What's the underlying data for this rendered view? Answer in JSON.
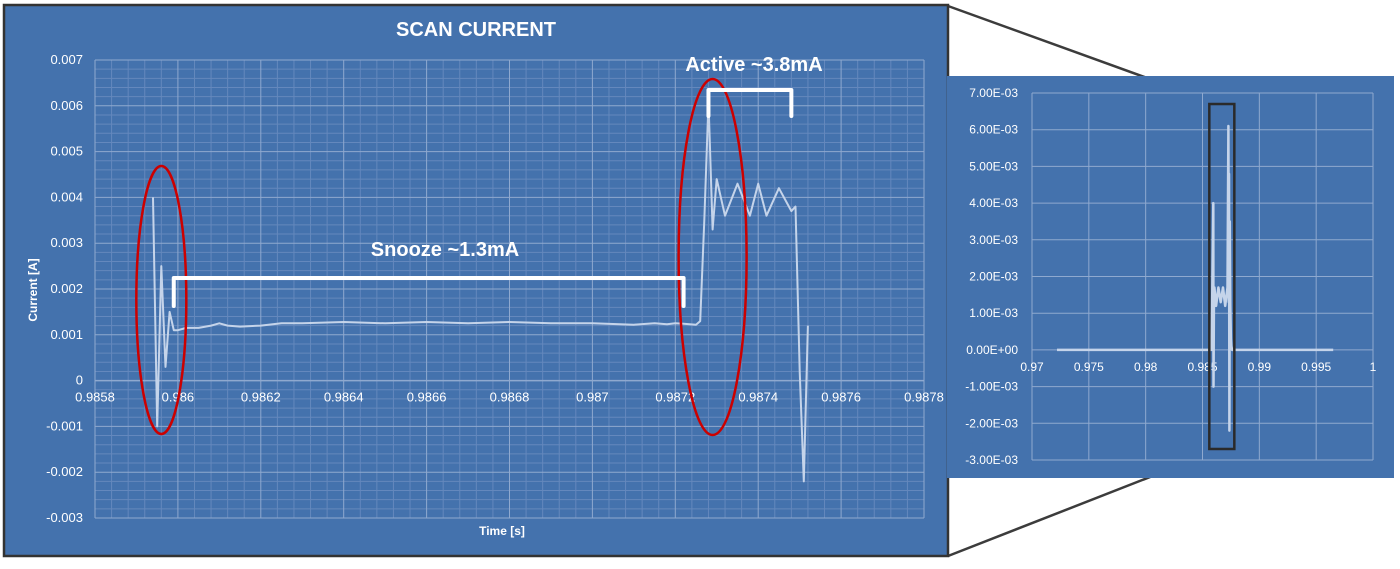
{
  "colors": {
    "panel_bg": "#4472ad",
    "frame": "#333333",
    "grid_major": "#8fa9cf",
    "grid_minor": "#6488bd",
    "axis_text": "#ffffff",
    "trace": "#c5d4ea",
    "highlight": "#cc0000",
    "bracket": "#ffffff"
  },
  "chart_data": [
    {
      "type": "line",
      "title": "SCAN CURRENT",
      "xlabel": "Time [s]",
      "ylabel": "Current [A]",
      "xlim": [
        0.9858,
        0.9878
      ],
      "ylim": [
        -0.003,
        0.007
      ],
      "xticks": [
        "0.9858",
        "0.986",
        "0.9862",
        "0.9864",
        "0.9866",
        "0.9868",
        "0.987",
        "0.9872",
        "0.9874",
        "0.9876",
        "0.9878"
      ],
      "yticks": [
        "-0.003",
        "-0.002",
        "-0.001",
        "0",
        "0.001",
        "0.002",
        "0.003",
        "0.004",
        "0.005",
        "0.006",
        "0.007"
      ],
      "grid": true,
      "series": [
        {
          "x": [
            0.98594,
            0.98595,
            0.98596,
            0.98597,
            0.98598,
            0.98599,
            0.986,
            0.98602,
            0.98605,
            0.98608,
            0.9861,
            0.98612,
            0.98615,
            0.9862,
            0.98625,
            0.9863,
            0.9864,
            0.9865,
            0.9866,
            0.9867,
            0.9868,
            0.9869,
            0.987,
            0.9871,
            0.98715,
            0.98718,
            0.9872,
            0.98722,
            0.98725,
            0.98726,
            0.98727,
            0.98728,
            0.98729,
            0.9873,
            0.98732,
            0.98735,
            0.98738,
            0.9874,
            0.98742,
            0.98745,
            0.98748,
            0.98749,
            0.9875,
            0.98751,
            0.98752
          ],
          "y": [
            0.004,
            -0.001,
            0.0025,
            0.0003,
            0.0015,
            0.0011,
            0.0011,
            0.00115,
            0.00115,
            0.0012,
            0.00125,
            0.0012,
            0.00118,
            0.0012,
            0.00125,
            0.00125,
            0.00128,
            0.00125,
            0.00128,
            0.00125,
            0.00128,
            0.00125,
            0.00125,
            0.00122,
            0.00125,
            0.00123,
            0.00125,
            0.00124,
            0.00122,
            0.0013,
            0.0035,
            0.0061,
            0.0033,
            0.0044,
            0.0036,
            0.0043,
            0.0036,
            0.0043,
            0.0036,
            0.0042,
            0.0037,
            0.0038,
            0.0002,
            -0.0022,
            0.0012
          ]
        }
      ],
      "annotations": [
        {
          "text": "Snooze ~1.3mA",
          "x_start": 0.98599,
          "x_end": 0.98722
        },
        {
          "text": "Active ~3.8mA",
          "x_start": 0.98728,
          "x_end": 0.98748
        },
        {
          "type": "ellipse",
          "x": 0.98596
        },
        {
          "type": "ellipse",
          "x": 0.98729
        }
      ]
    },
    {
      "type": "line",
      "xlim": [
        0.97,
        1
      ],
      "ylim": [
        -0.003,
        0.007
      ],
      "xticks": [
        "0.97",
        "0.975",
        "0.98",
        "0.985",
        "0.99",
        "0.995",
        "1"
      ],
      "yticks": [
        "-3.00E-03",
        "-2.00E-03",
        "-1.00E-03",
        "0.00E+00",
        "1.00E-03",
        "2.00E-03",
        "3.00E-03",
        "4.00E-03",
        "5.00E-03",
        "6.00E-03",
        "7.00E-03"
      ],
      "grid": true,
      "series": [
        {
          "x": [
            0.9722,
            0.9858,
            0.98595,
            0.98597,
            0.986,
            0.98605,
            0.9862,
            0.9864,
            0.9866,
            0.9868,
            0.987,
            0.9872,
            0.98728,
            0.98731,
            0.98733,
            0.98737,
            0.9874,
            0.98745,
            0.9875,
            0.98753,
            0.9876,
            0.9965
          ],
          "y": [
            0,
            0,
            0.004,
            -0.001,
            0.0011,
            0.0017,
            0.0012,
            0.0017,
            0.0013,
            0.0017,
            0.0012,
            0.0017,
            0.0061,
            0.0013,
            0.0048,
            -0.0022,
            0.0035,
            0.0012,
            0.0003,
            0.0001,
            0,
            0
          ]
        }
      ],
      "annotations": [
        {
          "type": "zoom-box",
          "x_start": 0.9856,
          "x_end": 0.9878,
          "y_start": -0.0027,
          "y_end": 0.0067
        }
      ]
    }
  ]
}
